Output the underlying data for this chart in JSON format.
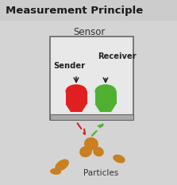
{
  "title": "Measurement Principle",
  "title_fontsize": 9.5,
  "sensor_label": "Sensor",
  "sender_label": "Sender",
  "receiver_label": "Receiver",
  "particles_label": "Particles",
  "bg_color": "#d4d4d4",
  "box_facecolor": "#e8e8e8",
  "box_edge_color": "#666666",
  "sender_color": "#e02020",
  "receiver_color": "#50b030",
  "particle_color": "#c88020",
  "arrow_color": "#222222",
  "red_arrow_color": "#dd2020",
  "green_arrow_color": "#50b030",
  "title_bg_color": "#cccccc",
  "bottom_bar_color": "#aaaaaa"
}
